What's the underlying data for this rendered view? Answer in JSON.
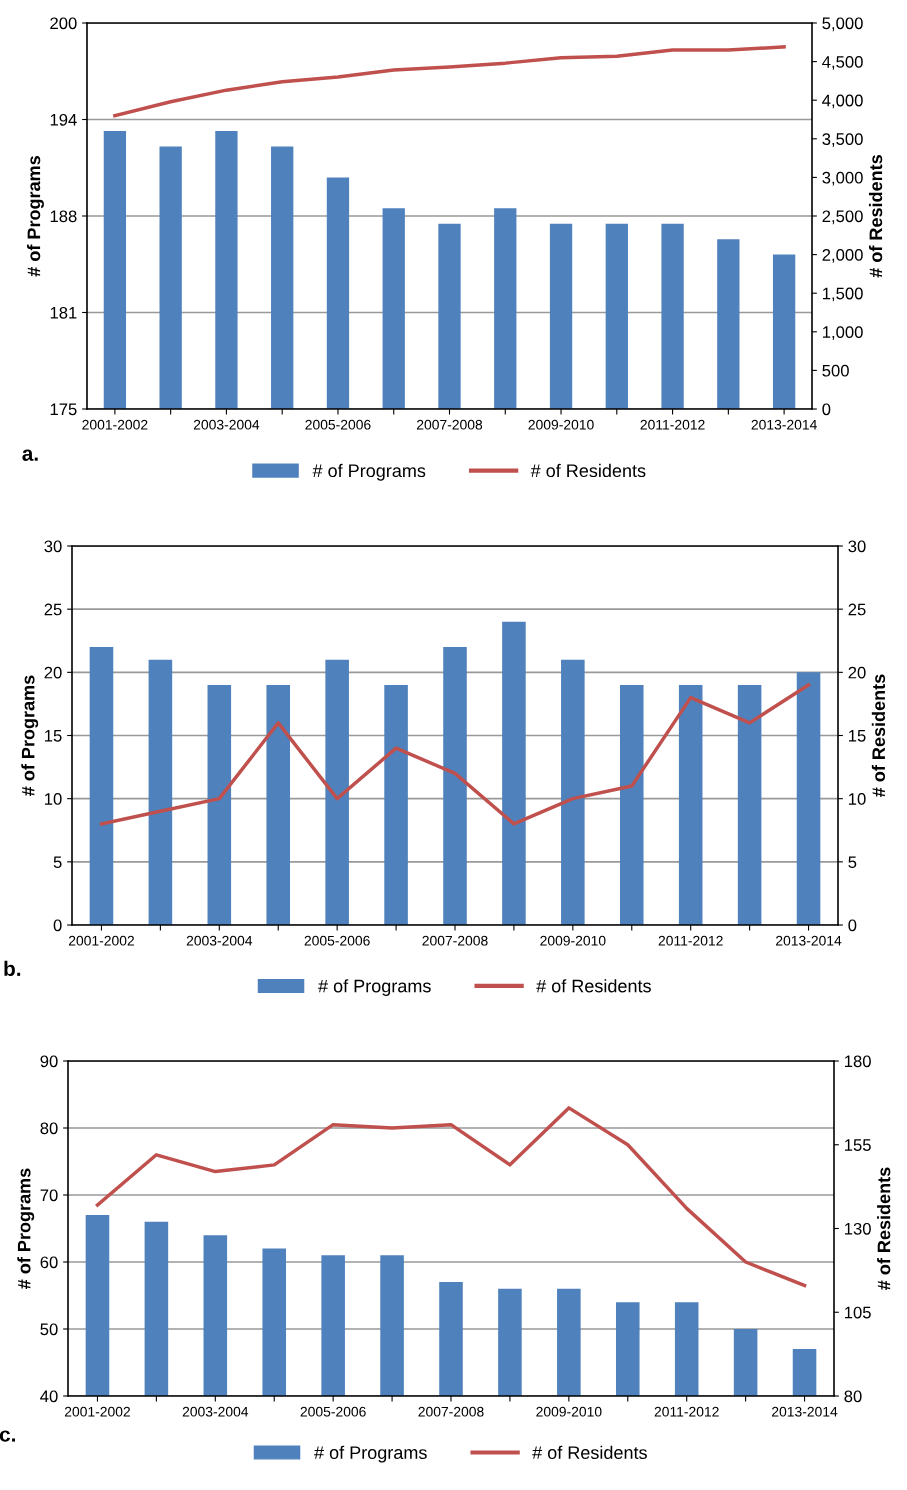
{
  "chart_data": [
    {
      "type": "bar",
      "categories": [
        "2001-2002",
        null,
        "2003-2004",
        null,
        "2005-2006",
        null,
        "2007-2008",
        null,
        "2009-2010",
        null,
        "2011-2012",
        null,
        "2013-2014"
      ],
      "ylabel": "# of Programs",
      "y2label": "# of Residents",
      "annotations": [
        "a."
      ],
      "ylim": [
        175,
        200
      ],
      "yticks": [
        175,
        {
          "value": 181.25,
          "label": "181"
        },
        {
          "value": 187.5,
          "label": "188"
        },
        {
          "value": 193.75,
          "label": "194"
        },
        200
      ],
      "y2lim": [
        0,
        5000
      ],
      "y2ticks": [
        {
          "value": 0,
          "label": "0"
        },
        {
          "value": 500,
          "label": "500"
        },
        {
          "value": 1000,
          "label": "1,000"
        },
        {
          "value": 1500,
          "label": "1,500"
        },
        {
          "value": 2000,
          "label": "2,000"
        },
        {
          "value": 2500,
          "label": "2,500"
        },
        {
          "value": 3000,
          "label": "3,000"
        },
        {
          "value": 3500,
          "label": "3,500"
        },
        {
          "value": 4000,
          "label": "4,000"
        },
        {
          "value": 4500,
          "label": "4,500"
        },
        {
          "value": 5000,
          "label": "5,000"
        }
      ],
      "grid": "y",
      "legend": "bottom",
      "series": [
        {
          "name": "# of Programs",
          "color": "#4f81bd",
          "values": [
            193,
            192,
            193,
            192,
            190,
            188,
            187,
            188,
            187,
            187,
            187,
            186,
            185
          ]
        },
        {
          "name": "# of Residents",
          "type": "line",
          "axis": "y2",
          "color": "#c0504d",
          "values": [
            3800,
            3980,
            4130,
            4240,
            4300,
            4390,
            4430,
            4480,
            4550,
            4570,
            4650,
            4650,
            4690
          ]
        }
      ]
    },
    {
      "type": "bar",
      "categories": [
        "2001-2002",
        null,
        "2003-2004",
        null,
        "2005-2006",
        null,
        "2007-2008",
        null,
        "2009-2010",
        null,
        "2011-2012",
        null,
        "2013-2014"
      ],
      "ylabel": "# of Programs",
      "y2label": "# of Residents",
      "annotations": [
        "b."
      ],
      "ylim": [
        0,
        30
      ],
      "yticks": [
        0,
        5,
        10,
        15,
        20,
        25,
        30
      ],
      "y2lim": [
        0,
        30
      ],
      "y2ticks": [
        0,
        5,
        10,
        15,
        20,
        25,
        30
      ],
      "grid": "y",
      "legend": "bottom",
      "series": [
        {
          "name": "# of Programs",
          "color": "#4f81bd",
          "values": [
            22,
            21,
            19,
            19,
            21,
            19,
            22,
            24,
            21,
            19,
            19,
            19,
            20
          ]
        },
        {
          "name": "# of Residents",
          "type": "line",
          "axis": "y2",
          "color": "#c0504d",
          "values": [
            8,
            9,
            10,
            16,
            10,
            14,
            12,
            8,
            10,
            11,
            18,
            16,
            19
          ]
        }
      ]
    },
    {
      "type": "bar",
      "categories": [
        "2001-2002",
        null,
        "2003-2004",
        null,
        "2005-2006",
        null,
        "2007-2008",
        null,
        "2009-2010",
        null,
        "2011-2012",
        null,
        "2013-2014"
      ],
      "ylabel": "# of Programs",
      "y2label": "# of Residents",
      "annotations": [
        "c."
      ],
      "ylim": [
        40,
        90
      ],
      "yticks": [
        40,
        50,
        60,
        70,
        80,
        90
      ],
      "y2lim": [
        80,
        180
      ],
      "y2ticks": [
        80,
        105,
        130,
        155,
        180
      ],
      "grid": "y",
      "legend": "bottom",
      "series": [
        {
          "name": "# of Programs",
          "color": "#4f81bd",
          "values": [
            67,
            66,
            64,
            62,
            61,
            61,
            57,
            56,
            56,
            54,
            54,
            50,
            47
          ]
        },
        {
          "name": "# of Residents",
          "type": "line",
          "axis": "y2",
          "color": "#c0504d",
          "values": [
            137,
            152,
            147,
            149,
            161,
            160,
            161,
            149,
            166,
            155,
            136,
            120,
            113
          ]
        }
      ]
    }
  ]
}
